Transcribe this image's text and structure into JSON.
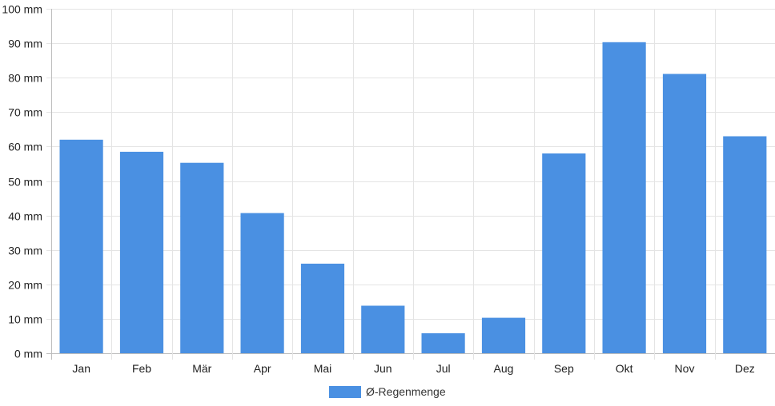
{
  "chart_data": {
    "type": "bar",
    "categories": [
      "Jan",
      "Feb",
      "Mär",
      "Apr",
      "Mai",
      "Jun",
      "Jul",
      "Aug",
      "Sep",
      "Okt",
      "Nov",
      "Dez"
    ],
    "series": [
      {
        "name": "Ø-Regenmenge",
        "color": "#4a90e2",
        "values": [
          62,
          58.5,
          55.3,
          40.7,
          26,
          13.8,
          5.8,
          10.3,
          58,
          90.3,
          81.1,
          63
        ]
      }
    ],
    "y_unit": "mm",
    "ylim": [
      0,
      100
    ],
    "yticks": [
      0,
      10,
      20,
      30,
      40,
      50,
      60,
      70,
      80,
      90,
      100
    ],
    "ytick_labels": [
      "0 mm",
      "10 mm",
      "20 mm",
      "30 mm",
      "40 mm",
      "50 mm",
      "60 mm",
      "70 mm",
      "80 mm",
      "90 mm",
      "100 mm"
    ],
    "grid": true,
    "legend_position": "bottom"
  }
}
